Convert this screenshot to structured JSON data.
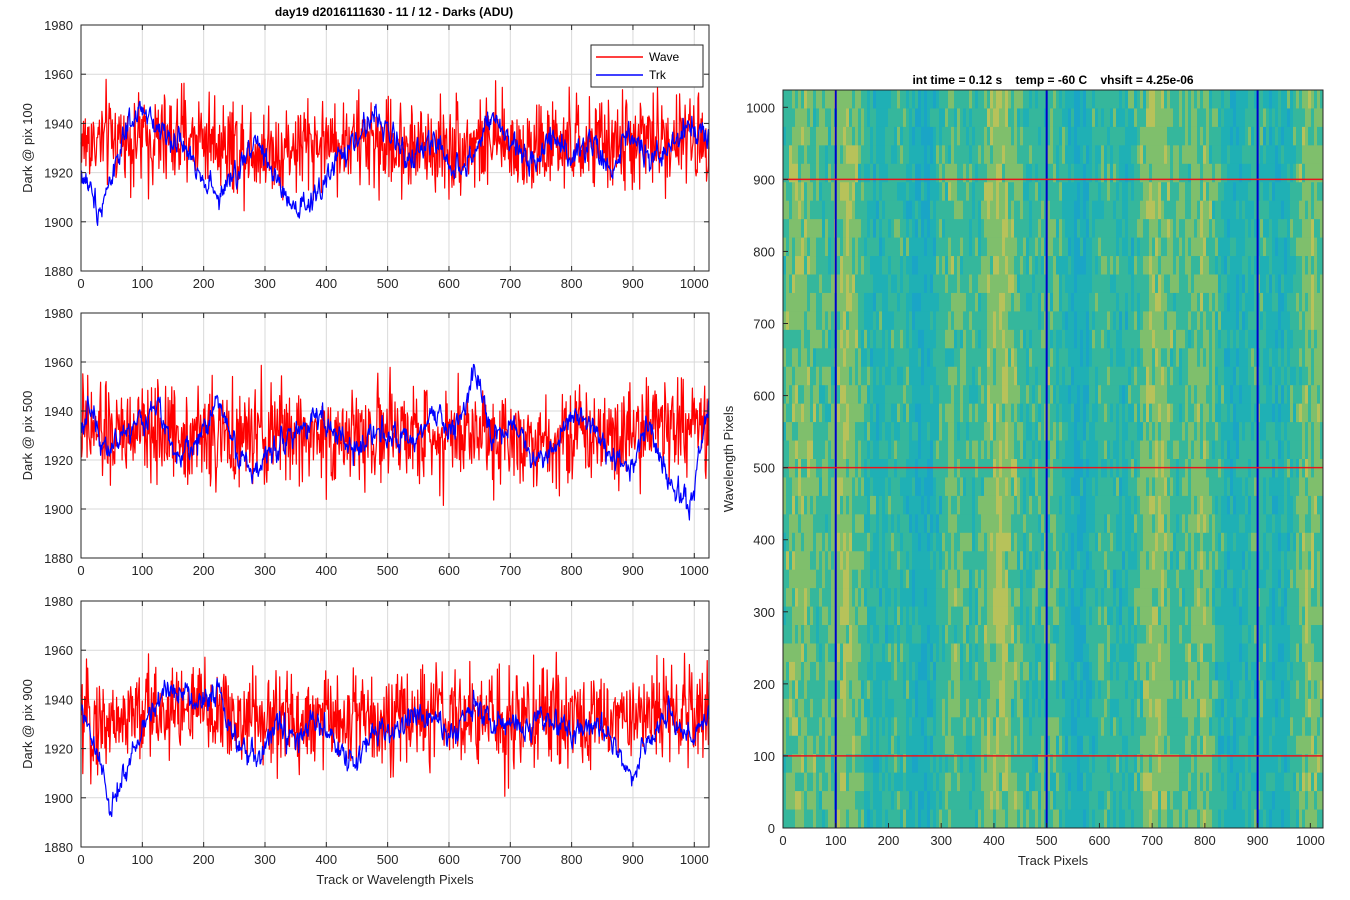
{
  "figure_title": "day19 d2016111630 - 11 / 12 - Darks (ADU)",
  "colors": {
    "wave": "#ff0000",
    "trk": "#0000ff",
    "grid": "#d9d9d9",
    "axes": "#262626"
  },
  "chart_data": [
    {
      "type": "line",
      "title": "day19 d2016111630 - 11 / 12 - Darks (ADU)",
      "xlabel": "",
      "ylabel": "Dark @ pix 100",
      "xlim": [
        0,
        1024
      ],
      "ylim": [
        1880,
        1980
      ],
      "xticks": [
        0,
        100,
        200,
        300,
        400,
        500,
        600,
        700,
        800,
        900,
        1000
      ],
      "yticks": [
        1880,
        1900,
        1920,
        1940,
        1960,
        1980
      ],
      "grid": true,
      "legend": {
        "position": "top-right",
        "entries": [
          "Wave",
          "Trk"
        ]
      },
      "series": [
        {
          "name": "Wave",
          "color": "#ff0000",
          "mean": 1932,
          "noise": 9.5,
          "min": 1891,
          "max": 1961,
          "x": [
            0,
            64,
            128,
            192,
            256,
            320,
            384,
            448,
            512,
            576,
            640,
            704,
            768,
            832,
            896,
            960,
            1024
          ],
          "values": [
            1932,
            1934,
            1933,
            1935,
            1931,
            1929,
            1932,
            1933,
            1931,
            1930,
            1932,
            1931,
            1930,
            1931,
            1932,
            1934,
            1933
          ]
        },
        {
          "name": "Trk",
          "color": "#0000ff",
          "mean": 1930,
          "noise": 4,
          "min": 1889,
          "max": 1955,
          "x": [
            0,
            16,
            32,
            48,
            64,
            96,
            128,
            160,
            192,
            224,
            256,
            288,
            320,
            352,
            384,
            416,
            448,
            480,
            512,
            544,
            576,
            608,
            640,
            672,
            704,
            736,
            768,
            800,
            832,
            864,
            896,
            928,
            960,
            992,
            1024
          ],
          "values": [
            1920,
            1912,
            1905,
            1918,
            1930,
            1945,
            1938,
            1932,
            1922,
            1910,
            1920,
            1935,
            1915,
            1902,
            1910,
            1925,
            1932,
            1945,
            1932,
            1925,
            1935,
            1920,
            1928,
            1942,
            1930,
            1925,
            1935,
            1928,
            1932,
            1920,
            1935,
            1925,
            1930,
            1940,
            1935
          ]
        }
      ]
    },
    {
      "type": "line",
      "title": "",
      "xlabel": "",
      "ylabel": "Dark @ pix 500",
      "xlim": [
        0,
        1024
      ],
      "ylim": [
        1880,
        1980
      ],
      "xticks": [
        0,
        100,
        200,
        300,
        400,
        500,
        600,
        700,
        800,
        900,
        1000
      ],
      "yticks": [
        1880,
        1900,
        1920,
        1940,
        1960,
        1980
      ],
      "grid": true,
      "series": [
        {
          "name": "Wave",
          "color": "#ff0000",
          "mean": 1930,
          "noise": 10,
          "min": 1885,
          "max": 1960,
          "x": [
            0,
            64,
            128,
            192,
            256,
            320,
            384,
            448,
            512,
            576,
            640,
            704,
            768,
            832,
            896,
            960,
            1024
          ],
          "values": [
            1932,
            1930,
            1932,
            1930,
            1928,
            1931,
            1930,
            1929,
            1931,
            1930,
            1932,
            1930,
            1929,
            1931,
            1933,
            1935,
            1932
          ]
        },
        {
          "name": "Trk",
          "color": "#0000ff",
          "mean": 1930,
          "noise": 4,
          "min": 1892,
          "max": 1964,
          "x": [
            0,
            16,
            32,
            48,
            64,
            96,
            128,
            160,
            192,
            224,
            256,
            288,
            320,
            352,
            384,
            416,
            448,
            480,
            512,
            544,
            576,
            608,
            640,
            672,
            704,
            736,
            768,
            800,
            832,
            864,
            896,
            928,
            960,
            992,
            1024
          ],
          "values": [
            1935,
            1940,
            1930,
            1925,
            1930,
            1935,
            1942,
            1920,
            1928,
            1945,
            1922,
            1915,
            1928,
            1930,
            1940,
            1930,
            1922,
            1935,
            1928,
            1925,
            1940,
            1930,
            1955,
            1930,
            1935,
            1920,
            1925,
            1940,
            1935,
            1920,
            1918,
            1935,
            1910,
            1900,
            1945
          ]
        }
      ]
    },
    {
      "type": "line",
      "title": "",
      "xlabel": "Track or Wavelength Pixels",
      "ylabel": "Dark @ pix 900",
      "xlim": [
        0,
        1024
      ],
      "ylim": [
        1880,
        1980
      ],
      "xticks": [
        0,
        100,
        200,
        300,
        400,
        500,
        600,
        700,
        800,
        900,
        1000
      ],
      "yticks": [
        1880,
        1900,
        1920,
        1940,
        1960,
        1980
      ],
      "grid": true,
      "series": [
        {
          "name": "Wave",
          "color": "#ff0000",
          "mean": 1933,
          "noise": 10,
          "min": 1889,
          "max": 1963,
          "x": [
            0,
            64,
            128,
            192,
            256,
            320,
            384,
            448,
            512,
            576,
            640,
            704,
            768,
            832,
            896,
            960,
            1024
          ],
          "values": [
            1930,
            1932,
            1936,
            1936,
            1932,
            1931,
            1932,
            1932,
            1933,
            1933,
            1931,
            1932,
            1933,
            1932,
            1933,
            1936,
            1934
          ]
        },
        {
          "name": "Trk",
          "color": "#0000ff",
          "mean": 1930,
          "noise": 4,
          "min": 1888,
          "max": 1964,
          "x": [
            0,
            16,
            32,
            48,
            64,
            96,
            128,
            160,
            192,
            224,
            256,
            288,
            320,
            352,
            384,
            416,
            448,
            480,
            512,
            544,
            576,
            608,
            640,
            672,
            704,
            736,
            768,
            800,
            832,
            864,
            896,
            928,
            960,
            992,
            1024
          ],
          "values": [
            1935,
            1925,
            1912,
            1895,
            1905,
            1925,
            1942,
            1945,
            1938,
            1945,
            1920,
            1915,
            1930,
            1922,
            1932,
            1920,
            1912,
            1930,
            1925,
            1935,
            1930,
            1925,
            1940,
            1930,
            1928,
            1930,
            1932,
            1925,
            1930,
            1928,
            1908,
            1925,
            1935,
            1922,
            1935
          ]
        }
      ]
    },
    {
      "type": "heatmap",
      "title": "int time = 0.12 s    temp = -60 C    vhsift = 4.25e-06",
      "xlabel": "Track Pixels",
      "ylabel": "Wavelength Pixels",
      "xlim": [
        0,
        1024
      ],
      "ylim": [
        0,
        1024
      ],
      "xticks": [
        0,
        100,
        200,
        300,
        400,
        500,
        600,
        700,
        800,
        900,
        1000
      ],
      "yticks": [
        0,
        100,
        200,
        300,
        400,
        500,
        600,
        700,
        800,
        900,
        1000
      ],
      "colormap": "parula",
      "colors": [
        "#1aa5c6",
        "#1fb0b5",
        "#35b79c",
        "#7fbf6c",
        "#b7c25a"
      ],
      "vertical_markers": {
        "color": "#0000cc",
        "x": [
          100,
          500,
          900
        ]
      },
      "horizontal_markers": {
        "color": "#e8141c",
        "y": [
          100,
          500,
          900
        ]
      }
    }
  ]
}
